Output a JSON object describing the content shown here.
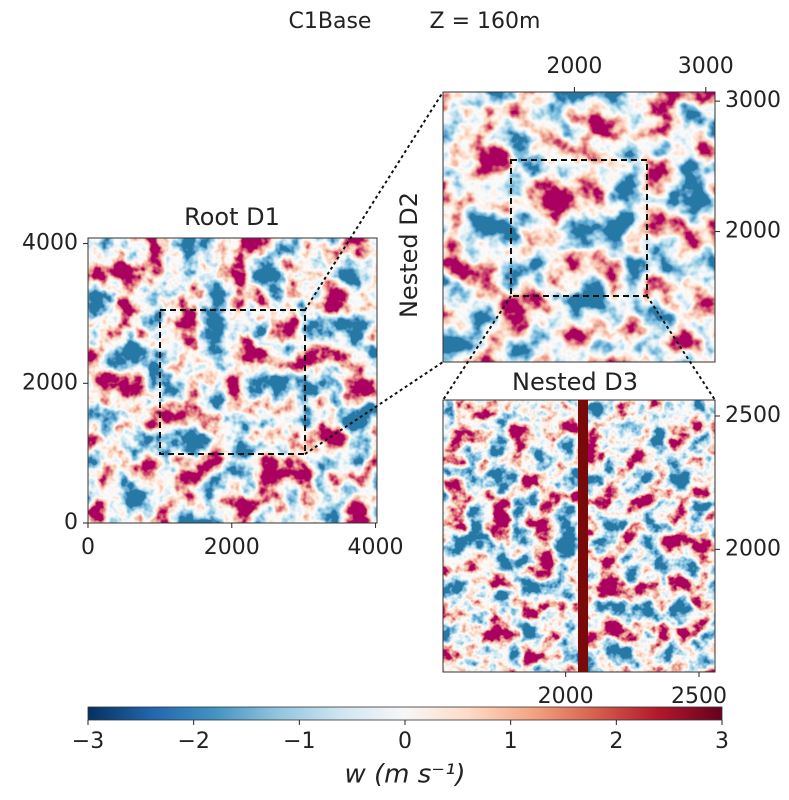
{
  "chart_data": [
    {
      "type": "heatmap",
      "title": "Root D1",
      "xlim": [
        0,
        4020
      ],
      "ylim": [
        0,
        4080
      ],
      "xticks": [
        0,
        2000,
        4000
      ],
      "yticks": [
        0,
        2000,
        4000
      ]
    },
    {
      "type": "heatmap",
      "title": "Nested D2",
      "xlim": [
        1000,
        3070
      ],
      "ylim": [
        1000,
        3070
      ],
      "xticks": [
        2000,
        3000
      ],
      "yticks": [
        2000,
        3000
      ]
    },
    {
      "type": "heatmap",
      "title": "Nested D3",
      "xlim": [
        1540,
        2560
      ],
      "ylim": [
        1540,
        2560
      ],
      "xticks": [
        2000,
        2500
      ],
      "yticks": [
        2000,
        2500
      ]
    },
    {
      "type": "colorbar",
      "title": "C1Base",
      "subtitle": "Z = 160m",
      "xlabel": "w (m s⁻¹)",
      "xlim": [
        -3,
        3
      ],
      "xticks": [
        {
          "value": -3,
          "label": "−3"
        },
        {
          "value": -2,
          "label": "−2"
        },
        {
          "value": -1,
          "label": "−1"
        },
        0,
        1,
        2,
        3
      ]
    }
  ]
}
